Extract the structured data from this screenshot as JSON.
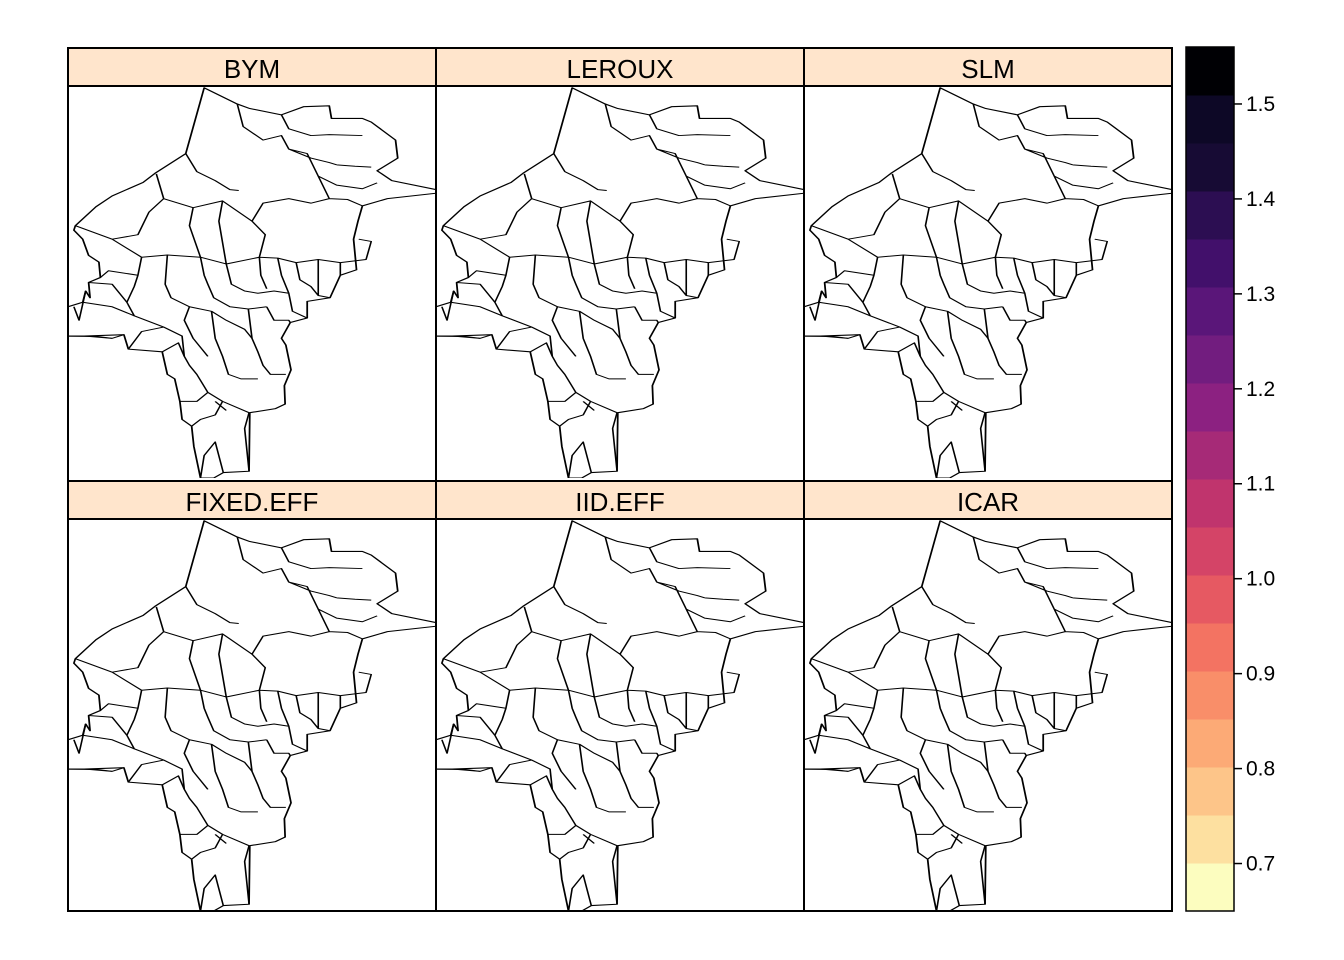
{
  "chart_data": {
    "type": "choropleth",
    "layout": "2 rows x 3 columns of map panels sharing one color key",
    "panels": [
      {
        "label": "BYM",
        "palette_note": "north-centre dark purple/black hotspot, south-centre light orange"
      },
      {
        "label": "LEROUX",
        "palette_note": "similar to BYM, slightly lighter"
      },
      {
        "label": "SLM",
        "palette_note": "strong contrast; darkest north-centre, lightest centre-south"
      },
      {
        "label": "FIXED.EFF",
        "palette_note": "uniform salmon (~0.97) across all areas"
      },
      {
        "label": "IID.EFF",
        "palette_note": "patchy; dark purple east and south-west"
      },
      {
        "label": "ICAR",
        "palette_note": "similar to BYM"
      }
    ],
    "colorbar": {
      "ticks": [
        0.7,
        0.8,
        0.9,
        1.0,
        1.1,
        1.2,
        1.3,
        1.4,
        1.5
      ],
      "tick_labels": [
        "0.7",
        "0.8",
        "0.9",
        "1.0",
        "1.1",
        "1.2",
        "1.3",
        "1.4",
        "1.5"
      ],
      "range": [
        0.65,
        1.56
      ],
      "n_bins": 18,
      "colors": [
        "#FCFDBF",
        "#FDE0A0",
        "#FDC589",
        "#FCAA76",
        "#F98E69",
        "#F37362",
        "#E65962",
        "#D44467",
        "#C0346D",
        "#A62A77",
        "#8C2181",
        "#721D7F",
        "#5A1679",
        "#42106B",
        "#2C0E52",
        "#170B34",
        "#0D0826",
        "#000004"
      ]
    },
    "strip_color": "#FFE5CC"
  }
}
